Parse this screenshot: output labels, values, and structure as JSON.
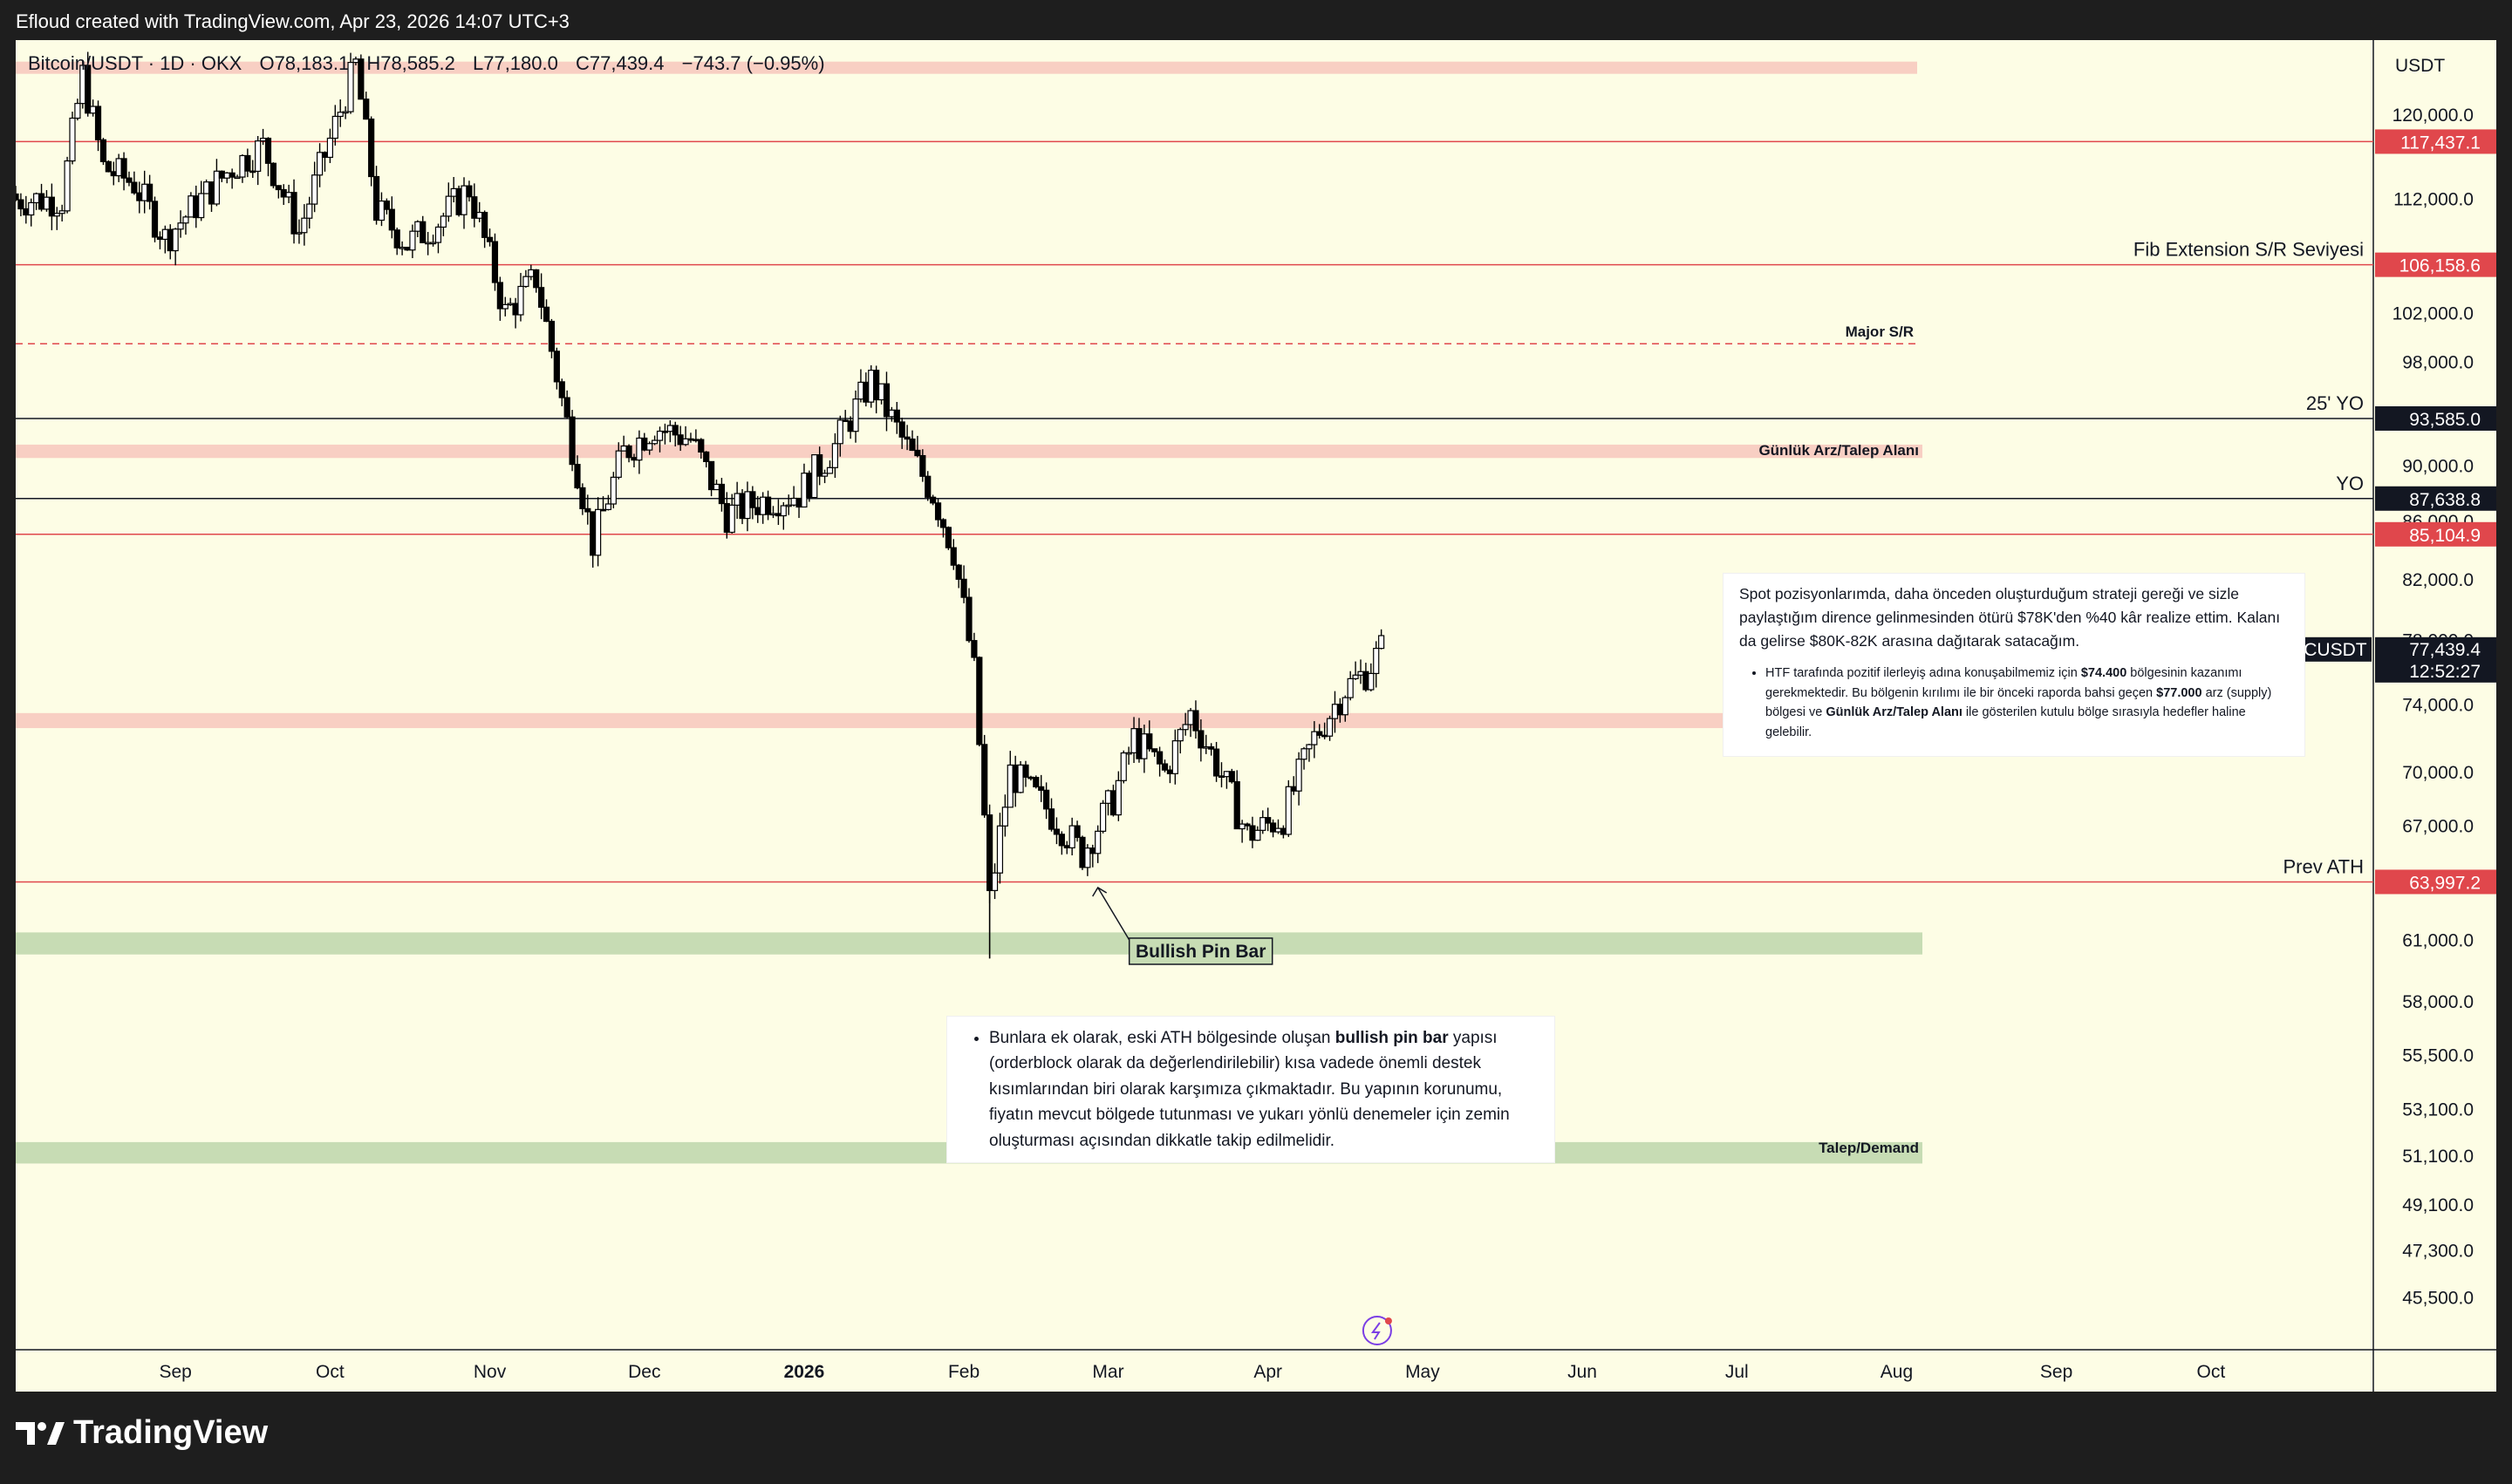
{
  "header": {
    "title": "Efloud created with TradingView.com, Apr 23, 2026 14:07 UTC+3"
  },
  "legend": {
    "symbol": "Bitcoin/USDT · 1D · OKX",
    "open": "O78,183.1",
    "high": "H78,585.2",
    "low": "L77,180.0",
    "close": "C77,439.4",
    "change": "−743.7 (−0.95%)"
  },
  "currency": "USDT",
  "brand": "TradingView",
  "colors": {
    "background": "#fdfde5",
    "frame": "#1e1e1e",
    "candle": "#000000",
    "supply_zone": "#f8cfc3",
    "demand_zone": "#c7dcb4",
    "red_line": "#e0474c",
    "black_line": "#131722"
  },
  "chart_data": {
    "type": "candlestick",
    "title": "Bitcoin/USDT · 1D · OKX",
    "currency": "USDT",
    "last_price": "77,439.4",
    "countdown": "12:52:27",
    "symbol_label": "BTCUSDT",
    "x_ticks": [
      "Sep",
      "Oct",
      "Nov",
      "Dec",
      "2026",
      "Feb",
      "Mar",
      "Apr",
      "May",
      "Jun",
      "Jul",
      "Aug",
      "Sep",
      "Oct"
    ],
    "y_ticks": [
      "120,000.0",
      "112,000.0",
      "102,000.0",
      "98,000.0",
      "90,000.0",
      "86,000.0",
      "82,000.0",
      "78,000.0",
      "74,000.0",
      "70,000.0",
      "67,000.0",
      "61,000.0",
      "58,000.0",
      "55,500.0",
      "53,100.0",
      "51,100.0",
      "49,100.0",
      "47,300.0",
      "45,500.0"
    ],
    "y_range": [
      45000,
      126000
    ],
    "y_scale": "log",
    "price_series": {
      "name": "BTCUSDT",
      "points": [
        [
          "2025-08-10",
          112000
        ],
        [
          "2025-08-14",
          124000
        ],
        [
          "2025-08-18",
          115000
        ],
        [
          "2025-08-24",
          113500
        ],
        [
          "2025-08-30",
          108500
        ],
        [
          "2025-09-05",
          111500
        ],
        [
          "2025-09-12",
          115000
        ],
        [
          "2025-09-18",
          117000
        ],
        [
          "2025-09-25",
          109000
        ],
        [
          "2025-10-02",
          119000
        ],
        [
          "2025-10-06",
          125000
        ],
        [
          "2025-10-10",
          111000
        ],
        [
          "2025-10-16",
          108000
        ],
        [
          "2025-10-22",
          110000
        ],
        [
          "2025-10-28",
          113000
        ],
        [
          "2025-11-04",
          102000
        ],
        [
          "2025-11-10",
          105000
        ],
        [
          "2025-11-15",
          95000
        ],
        [
          "2025-11-21",
          84500
        ],
        [
          "2025-11-27",
          91000
        ],
        [
          "2025-12-03",
          93000
        ],
        [
          "2025-12-10",
          92000
        ],
        [
          "2025-12-17",
          86500
        ],
        [
          "2025-12-24",
          87500
        ],
        [
          "2025-12-31",
          88000
        ],
        [
          "2026-01-07",
          91500
        ],
        [
          "2026-01-14",
          96500
        ],
        [
          "2026-01-20",
          92000
        ],
        [
          "2026-01-26",
          88000
        ],
        [
          "2026-01-30",
          84000
        ],
        [
          "2026-02-03",
          76000
        ],
        [
          "2026-02-06",
          63000
        ],
        [
          "2026-02-10",
          70000
        ],
        [
          "2026-02-17",
          68000
        ],
        [
          "2026-02-24",
          65500
        ],
        [
          "2026-03-02",
          68500
        ],
        [
          "2026-03-06",
          72000
        ],
        [
          "2026-03-12",
          70000
        ],
        [
          "2026-03-17",
          73500
        ],
        [
          "2026-03-22",
          70500
        ],
        [
          "2026-03-28",
          66500
        ],
        [
          "2026-04-04",
          67500
        ],
        [
          "2026-04-10",
          72000
        ],
        [
          "2026-04-16",
          75000
        ],
        [
          "2026-04-20",
          76000
        ],
        [
          "2026-04-23",
          77439.4
        ]
      ]
    },
    "levels": [
      {
        "price": 117437.1,
        "label": "117,437.1",
        "style": "red"
      },
      {
        "price": 106158.6,
        "label": "106,158.6",
        "style": "red",
        "text": "Fib Extension S/R Seviyesi"
      },
      {
        "price": 93585.0,
        "label": "93,585.0",
        "style": "black",
        "text": "25' YO"
      },
      {
        "price": 87638.8,
        "label": "87,638.8",
        "style": "black",
        "text": "YO"
      },
      {
        "price": 85104.9,
        "label": "85,104.9",
        "style": "red"
      },
      {
        "price": 63997.2,
        "label": "63,997.2",
        "style": "red",
        "text": "Prev ATH"
      },
      {
        "price": 99500,
        "style": "red-dashed",
        "text": "Major S/R"
      }
    ],
    "zones": [
      {
        "from": 124500,
        "to": 125400,
        "type": "supply"
      },
      {
        "from": 90600,
        "to": 91600,
        "type": "supply",
        "text": "Günlük Arz/Talep Alanı"
      },
      {
        "from": 72600,
        "to": 73500,
        "type": "supply"
      },
      {
        "from": 60300,
        "to": 61400,
        "type": "demand"
      },
      {
        "from": 50800,
        "to": 51700,
        "type": "demand",
        "text": "Talep/Demand"
      }
    ],
    "annotation": "Bullish Pin Bar"
  },
  "notes": {
    "note1": {
      "paragraph": "Spot pozisyonlarımda, daha önceden oluşturduğum strateji gereği ve sizle paylaştığım dirence gelinmesinden ötürü $78K'den %40 kâr realize ettim. Kalanı da gelirse $80K-82K arasına dağıtarak satacağım.",
      "bullet_a": "HTF tarafında pozitif ilerleyiş adına konuşabilmemiz için ",
      "bullet_b": "$74.400",
      "bullet_c": " bölgesinin kazanımı gerekmektedir. Bu bölgenin kırılımı ile bir önceki raporda bahsi geçen ",
      "bullet_d": "$77.000",
      "bullet_e": " arz (supply) bölgesi ve ",
      "bullet_f": "Günlük Arz/Talep Alanı",
      "bullet_g": " ile gösterilen kutulu bölge sırasıyla hedefler haline gelebilir."
    },
    "note2": {
      "bullet_a": "Bunlara ek olarak, eski ATH bölgesinde oluşan ",
      "bullet_b": "bullish pin bar",
      "bullet_c": " yapısı (orderblock olarak da değerlendirilebilir) kısa vadede önemli destek kısımlarından biri olarak karşımıza çıkmaktadır. Bu yapının korunumu, fiyatın mevcut bölgede tutunması ve yukarı yönlü denemeler için zemin oluşturması açısından dikkatle takip edilmelidir."
    }
  }
}
